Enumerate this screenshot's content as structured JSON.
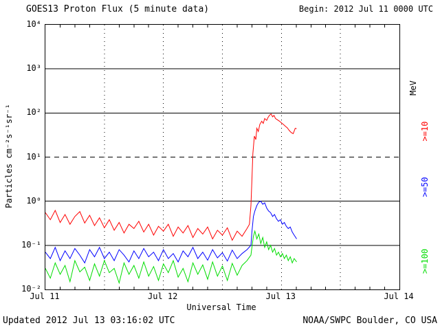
{
  "title": "GOES13 Proton Flux (5 minute data)",
  "begin_label": "Begin: 2012 Jul 11 0000 UTC",
  "footer": {
    "updated": "Updated 2012 Jul 13 03:16:02 UTC",
    "credit": "NOAA/SWPC Boulder, CO USA"
  },
  "right_labels": [
    {
      "text": "MeV",
      "color": "#000000"
    },
    {
      "text": ">=10",
      "color": "#ff0000"
    },
    {
      "text": ">=50",
      "color": "#0000ff"
    },
    {
      "text": ">=100",
      "color": "#00dd00"
    }
  ],
  "chart_data": {
    "type": "line",
    "title": "GOES13 Proton Flux (5 minute data)",
    "xlabel": "Universal Time",
    "ylabel": "Particles cm⁻²s⁻¹sr⁻¹",
    "y_scale": "log",
    "y_log_range": [
      -2,
      4
    ],
    "y_tick_labels": [
      "10⁴",
      "10³",
      "10²",
      "10¹",
      "10⁰",
      "10⁻¹",
      "10⁻²"
    ],
    "x_range_hours": [
      0,
      72
    ],
    "x_start": "2012 Jul 11 0000 UTC",
    "x_tick_labels": [
      "Jul 11",
      "Jul 12",
      "Jul 13",
      "Jul 14"
    ],
    "threshold_dashed_line_flux": 10,
    "grid": "decades solid, 10^1 dashed, dotted verticals every 12h",
    "legend_position": "right",
    "series": [
      {
        "name": ">=100 MeV",
        "color": "#00dd00",
        "points": [
          [
            0,
            0.03
          ],
          [
            1,
            0.018
          ],
          [
            2,
            0.04
          ],
          [
            3,
            0.022
          ],
          [
            4,
            0.035
          ],
          [
            5,
            0.015
          ],
          [
            6,
            0.045
          ],
          [
            7,
            0.025
          ],
          [
            8,
            0.032
          ],
          [
            9,
            0.016
          ],
          [
            10,
            0.038
          ],
          [
            11,
            0.02
          ],
          [
            12,
            0.045
          ],
          [
            13,
            0.024
          ],
          [
            14,
            0.03
          ],
          [
            15,
            0.014
          ],
          [
            16,
            0.04
          ],
          [
            17,
            0.022
          ],
          [
            18,
            0.035
          ],
          [
            19,
            0.018
          ],
          [
            20,
            0.042
          ],
          [
            21,
            0.02
          ],
          [
            22,
            0.033
          ],
          [
            23,
            0.016
          ],
          [
            24,
            0.038
          ],
          [
            25,
            0.024
          ],
          [
            26,
            0.045
          ],
          [
            27,
            0.019
          ],
          [
            28,
            0.03
          ],
          [
            29,
            0.015
          ],
          [
            30,
            0.04
          ],
          [
            31,
            0.022
          ],
          [
            32,
            0.036
          ],
          [
            33,
            0.017
          ],
          [
            34,
            0.042
          ],
          [
            35,
            0.02
          ],
          [
            36,
            0.034
          ],
          [
            37,
            0.016
          ],
          [
            38,
            0.039
          ],
          [
            39,
            0.021
          ],
          [
            40,
            0.035
          ],
          [
            41,
            0.045
          ],
          [
            41.8,
            0.06
          ],
          [
            42,
            0.09
          ],
          [
            42.3,
            0.16
          ],
          [
            42.6,
            0.21
          ],
          [
            43,
            0.14
          ],
          [
            43.4,
            0.18
          ],
          [
            43.8,
            0.11
          ],
          [
            44.2,
            0.15
          ],
          [
            44.6,
            0.09
          ],
          [
            45,
            0.12
          ],
          [
            45.4,
            0.08
          ],
          [
            45.8,
            0.1
          ],
          [
            46.2,
            0.07
          ],
          [
            46.6,
            0.085
          ],
          [
            47,
            0.06
          ],
          [
            47.4,
            0.07
          ],
          [
            47.8,
            0.055
          ],
          [
            48.2,
            0.065
          ],
          [
            48.6,
            0.05
          ],
          [
            49,
            0.06
          ],
          [
            49.4,
            0.045
          ],
          [
            49.8,
            0.055
          ],
          [
            50.2,
            0.04
          ],
          [
            50.6,
            0.05
          ],
          [
            51.1,
            0.042
          ]
        ]
      },
      {
        "name": ">=50 MeV",
        "color": "#0000ff",
        "points": [
          [
            0,
            0.07
          ],
          [
            1,
            0.05
          ],
          [
            2,
            0.09
          ],
          [
            3,
            0.045
          ],
          [
            4,
            0.075
          ],
          [
            5,
            0.05
          ],
          [
            6,
            0.085
          ],
          [
            7,
            0.06
          ],
          [
            8,
            0.04
          ],
          [
            9,
            0.08
          ],
          [
            10,
            0.055
          ],
          [
            11,
            0.09
          ],
          [
            12,
            0.05
          ],
          [
            13,
            0.07
          ],
          [
            14,
            0.045
          ],
          [
            15,
            0.08
          ],
          [
            16,
            0.06
          ],
          [
            17,
            0.042
          ],
          [
            18,
            0.075
          ],
          [
            19,
            0.05
          ],
          [
            20,
            0.085
          ],
          [
            21,
            0.055
          ],
          [
            22,
            0.07
          ],
          [
            23,
            0.045
          ],
          [
            24,
            0.08
          ],
          [
            25,
            0.05
          ],
          [
            26,
            0.065
          ],
          [
            27,
            0.042
          ],
          [
            28,
            0.075
          ],
          [
            29,
            0.055
          ],
          [
            30,
            0.09
          ],
          [
            31,
            0.05
          ],
          [
            32,
            0.07
          ],
          [
            33,
            0.046
          ],
          [
            34,
            0.08
          ],
          [
            35,
            0.052
          ],
          [
            36,
            0.068
          ],
          [
            37,
            0.044
          ],
          [
            38,
            0.078
          ],
          [
            39,
            0.05
          ],
          [
            40,
            0.065
          ],
          [
            41,
            0.08
          ],
          [
            41.8,
            0.1
          ],
          [
            42,
            0.2
          ],
          [
            42.3,
            0.45
          ],
          [
            42.6,
            0.6
          ],
          [
            43,
            0.8
          ],
          [
            43.4,
            0.95
          ],
          [
            43.8,
            1.0
          ],
          [
            44.2,
            0.85
          ],
          [
            44.6,
            0.92
          ],
          [
            45,
            0.7
          ],
          [
            45.4,
            0.6
          ],
          [
            45.8,
            0.55
          ],
          [
            46.2,
            0.45
          ],
          [
            46.6,
            0.5
          ],
          [
            47,
            0.4
          ],
          [
            47.4,
            0.35
          ],
          [
            47.8,
            0.38
          ],
          [
            48.2,
            0.3
          ],
          [
            48.6,
            0.33
          ],
          [
            49,
            0.27
          ],
          [
            49.4,
            0.24
          ],
          [
            49.8,
            0.26
          ],
          [
            50.2,
            0.2
          ],
          [
            50.6,
            0.17
          ],
          [
            51.1,
            0.14
          ]
        ]
      },
      {
        "name": ">=10 MeV",
        "color": "#ff0000",
        "points": [
          [
            0,
            0.55
          ],
          [
            1,
            0.38
          ],
          [
            2,
            0.62
          ],
          [
            3,
            0.33
          ],
          [
            4,
            0.5
          ],
          [
            5,
            0.3
          ],
          [
            6,
            0.45
          ],
          [
            7,
            0.58
          ],
          [
            8,
            0.32
          ],
          [
            9,
            0.48
          ],
          [
            10,
            0.28
          ],
          [
            11,
            0.42
          ],
          [
            12,
            0.25
          ],
          [
            13,
            0.38
          ],
          [
            14,
            0.22
          ],
          [
            15,
            0.33
          ],
          [
            16,
            0.19
          ],
          [
            17,
            0.3
          ],
          [
            18,
            0.24
          ],
          [
            19,
            0.35
          ],
          [
            20,
            0.2
          ],
          [
            21,
            0.3
          ],
          [
            22,
            0.17
          ],
          [
            23,
            0.27
          ],
          [
            24,
            0.21
          ],
          [
            25,
            0.3
          ],
          [
            26,
            0.16
          ],
          [
            27,
            0.26
          ],
          [
            28,
            0.19
          ],
          [
            29,
            0.28
          ],
          [
            30,
            0.15
          ],
          [
            31,
            0.24
          ],
          [
            32,
            0.18
          ],
          [
            33,
            0.26
          ],
          [
            34,
            0.14
          ],
          [
            35,
            0.22
          ],
          [
            36,
            0.17
          ],
          [
            37,
            0.25
          ],
          [
            38,
            0.13
          ],
          [
            39,
            0.21
          ],
          [
            40,
            0.16
          ],
          [
            41,
            0.24
          ],
          [
            41.5,
            0.3
          ],
          [
            41.8,
            0.8
          ],
          [
            42,
            3
          ],
          [
            42.2,
            12
          ],
          [
            42.5,
            30
          ],
          [
            42.8,
            25
          ],
          [
            43,
            45
          ],
          [
            43.3,
            38
          ],
          [
            43.6,
            55
          ],
          [
            44,
            65
          ],
          [
            44.3,
            58
          ],
          [
            44.6,
            75
          ],
          [
            45,
            68
          ],
          [
            45.3,
            80
          ],
          [
            45.6,
            90
          ],
          [
            45.9,
            95
          ],
          [
            46.2,
            82
          ],
          [
            46.5,
            88
          ],
          [
            46.8,
            75
          ],
          [
            47.2,
            70
          ],
          [
            47.6,
            65
          ],
          [
            48,
            60
          ],
          [
            48.4,
            55
          ],
          [
            48.8,
            50
          ],
          [
            49.2,
            46
          ],
          [
            49.6,
            40
          ],
          [
            50,
            36
          ],
          [
            50.4,
            34
          ],
          [
            50.8,
            45
          ],
          [
            51.1,
            44
          ]
        ]
      }
    ]
  }
}
